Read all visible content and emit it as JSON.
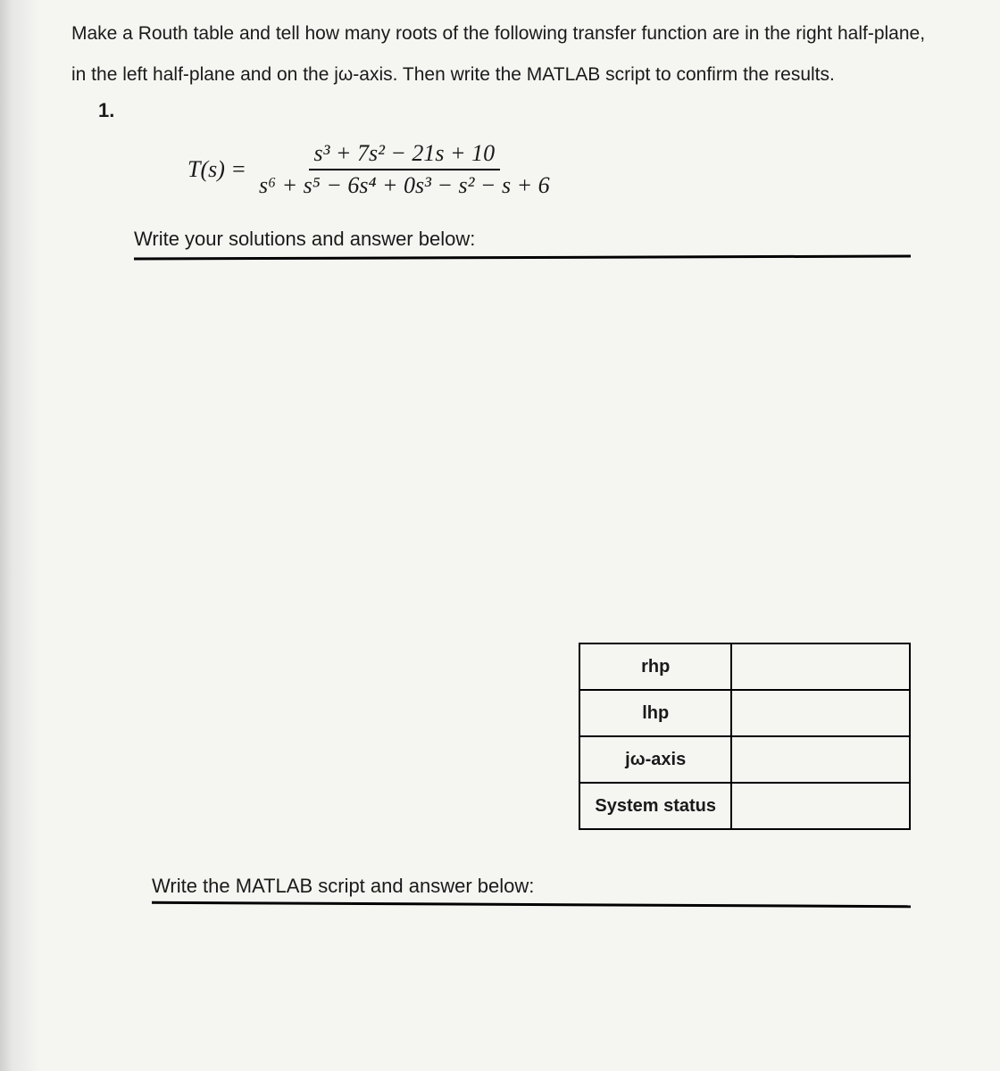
{
  "prompt": {
    "line1": "Make a Routh table and tell how many roots of the following transfer function are in the right half-plane,",
    "line2": "in the left half-plane and on the jω-axis. Then write the MATLAB script to confirm the results.",
    "item_number": "1."
  },
  "equation": {
    "lhs": "T(s) =",
    "numerator": "s³ + 7s² − 21s + 10",
    "denominator": "s⁶ + s⁵ − 6s⁴ + 0s³ − s² − s + 6"
  },
  "labels": {
    "solutions": "Write your solutions and answer below:",
    "matlab": "Write the MATLAB script and answer below:"
  },
  "table": {
    "rows": [
      {
        "label": "rhp",
        "value": ""
      },
      {
        "label": "lhp",
        "value": ""
      },
      {
        "label": "jω-axis",
        "value": ""
      },
      {
        "label": "System status",
        "value": ""
      }
    ]
  },
  "styles": {
    "background_color": "#f5f5f2",
    "text_color": "#1a1a1a",
    "border_color": "#000000",
    "body_fontsize": 21,
    "equation_fontsize": 26,
    "table_fontsize": 20
  }
}
